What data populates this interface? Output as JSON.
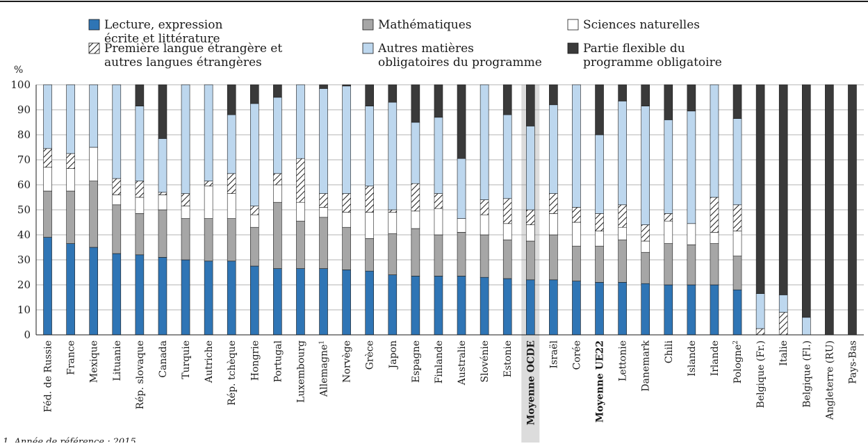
{
  "chart_data": {
    "type": "bar",
    "stacked": true,
    "title": "",
    "xlabel": "",
    "ylabel": "%",
    "ylim": [
      0,
      100
    ],
    "yticks": [
      0,
      10,
      20,
      30,
      40,
      50,
      60,
      70,
      80,
      90,
      100
    ],
    "grid": true,
    "legend": "top",
    "note": "1. Année de référence : 2015.",
    "highlight_category": "Moyenne OCDE",
    "bold_categories": [
      "Moyenne OCDE",
      "Moyenne UE22"
    ],
    "categories": [
      "Féd. de Russie",
      "France",
      "Mexique",
      "Lituanie",
      "Rép. slovaque",
      "Canada",
      "Turquie",
      "Autriche",
      "Rép. tchèque",
      "Hongrie",
      "Portugal",
      "Luxembourg",
      "Allemagne",
      "Norvège",
      "Grèce",
      "Japon",
      "Espagne",
      "Finlande",
      "Australie",
      "Slovénie",
      "Estonie",
      "Moyenne OCDE",
      "Israël",
      "Corée",
      "Moyenne UE22",
      "Lettonie",
      "Danemark",
      "Chili",
      "Islande",
      "Irlande",
      "Pologne",
      "Belgique (Fr.)",
      "Italie",
      "Belgique (Fl.)",
      "Angleterre (RU)",
      "Pays-Bas"
    ],
    "category_superscripts": {
      "Allemagne": "1",
      "Pologne": "2"
    },
    "series": [
      {
        "name": "Lecture, expression écrite et littérature",
        "color": "#2f75b5",
        "pattern": "solid",
        "values": [
          39,
          36.5,
          35,
          32.5,
          32,
          31,
          30,
          29.5,
          29.5,
          27.5,
          26.5,
          26.5,
          26.5,
          26,
          25.5,
          24,
          23.5,
          23.5,
          23.5,
          23,
          22.5,
          22,
          22,
          21.5,
          21,
          21,
          20.5,
          20,
          20,
          20,
          18,
          0,
          0,
          0,
          0,
          0
        ]
      },
      {
        "name": "Mathématiques",
        "color": "#a6a6a6",
        "pattern": "solid",
        "values": [
          18.5,
          21,
          26.5,
          19.5,
          16.5,
          19,
          16.5,
          17,
          17,
          15.5,
          26.5,
          19,
          20.5,
          17,
          13,
          16.5,
          19,
          16.5,
          17.5,
          17,
          15.5,
          15.5,
          18,
          14,
          14.5,
          17,
          12.5,
          16.5,
          16,
          16.5,
          13.5,
          0,
          0,
          0,
          0,
          0
        ]
      },
      {
        "name": "Sciences naturelles",
        "color": "#ffffff",
        "pattern": "solid",
        "values": [
          9.5,
          9,
          13.5,
          4,
          6.5,
          6,
          5,
          13,
          10,
          5,
          7,
          7.5,
          4,
          6,
          10.5,
          8.5,
          7,
          10.5,
          5.5,
          8,
          6.5,
          6.5,
          8.5,
          9.5,
          6,
          5,
          4.5,
          9,
          8.5,
          4.5,
          10,
          0,
          0,
          0,
          0,
          0
        ]
      },
      {
        "name": "Première langue étrangère et autres langues étrangères",
        "color": "#ffffff",
        "pattern": "hatch",
        "values": [
          7.5,
          6,
          0,
          6.5,
          6.5,
          1,
          5,
          2,
          8,
          3.5,
          4.5,
          17.5,
          5.5,
          7.5,
          10.5,
          1,
          11,
          6,
          0,
          6,
          10,
          6,
          8,
          6,
          7,
          9,
          6.5,
          3,
          0,
          14,
          10.5,
          2.5,
          9,
          0,
          0,
          0
        ]
      },
      {
        "name": "Autres matières obligatoires du programme",
        "color": "#bdd7ee",
        "pattern": "solid",
        "values": [
          25.5,
          27.5,
          25,
          37.5,
          30,
          21.5,
          43.5,
          38.5,
          23.5,
          41,
          30.5,
          29.5,
          42,
          43,
          32,
          43,
          24.5,
          30.5,
          24,
          46,
          33.5,
          33.5,
          35.5,
          49,
          31.5,
          41.5,
          47.5,
          37.5,
          45,
          45,
          34.5,
          14,
          7,
          7,
          0,
          0
        ]
      },
      {
        "name": "Partie flexible du programme obligatoire",
        "color": "#3a3a3a",
        "pattern": "solid",
        "values": [
          0,
          0,
          0,
          0,
          8.5,
          21.5,
          0,
          0,
          12,
          7.5,
          5,
          0,
          1.5,
          0.5,
          8.5,
          7,
          15,
          13,
          29.5,
          0,
          12,
          16.5,
          8,
          0,
          20,
          6.5,
          8.5,
          14,
          10.5,
          0,
          13.5,
          83.5,
          84,
          93,
          100,
          100
        ]
      }
    ]
  }
}
